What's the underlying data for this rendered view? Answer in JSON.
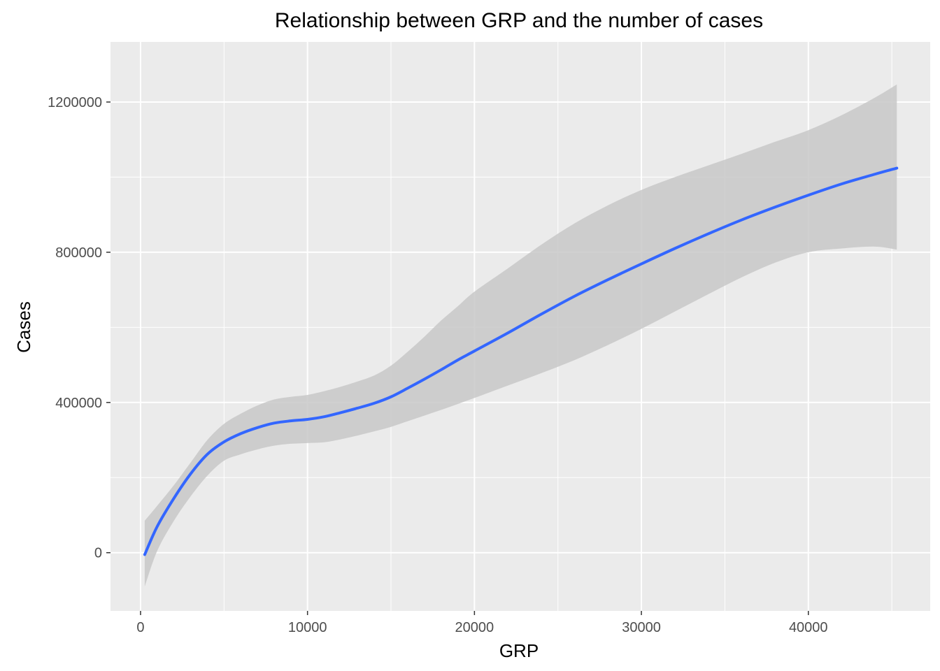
{
  "chart_data": {
    "type": "line",
    "title": "Relationship between GRP and the number of cases",
    "xlabel": "GRP",
    "ylabel": "Cases",
    "xlim": [
      -1800,
      47300
    ],
    "ylim": [
      -155000,
      1360000
    ],
    "x_ticks": [
      0,
      10000,
      20000,
      30000,
      40000
    ],
    "x_tick_labels": [
      "0",
      "10000",
      "20000",
      "30000",
      "40000"
    ],
    "y_ticks": [
      0,
      400000,
      800000,
      1200000
    ],
    "y_tick_labels": [
      "0",
      "400000",
      "800000",
      "1200000"
    ],
    "grid": true,
    "legend": "none",
    "colors": {
      "panel_background": "#ebebeb",
      "grid_line": "#ffffff",
      "smooth_line": "#3366ff",
      "confidence_band": "#c8c8c8"
    },
    "series": [
      {
        "type": "smooth_line",
        "x": [
          250,
          1000,
          2000,
          3000,
          4000,
          5000,
          6000,
          7000,
          8000,
          9000,
          10000,
          11000,
          12000,
          13000,
          14000,
          15000,
          16000,
          17000,
          18000,
          19000,
          20000,
          22000,
          24000,
          26000,
          28000,
          30000,
          32000,
          34000,
          36000,
          38000,
          40000,
          42000,
          44000,
          45300
        ],
        "y": [
          -5000,
          70000,
          145000,
          210000,
          262000,
          295000,
          317000,
          333000,
          345000,
          351000,
          355000,
          362000,
          373000,
          385000,
          398000,
          415000,
          438000,
          462000,
          487000,
          513000,
          537000,
          585000,
          635000,
          683000,
          727000,
          769000,
          810000,
          849000,
          886000,
          920000,
          952000,
          982000,
          1008000,
          1024000
        ],
        "ci_upper": [
          85000,
          125000,
          180000,
          240000,
          300000,
          343000,
          370000,
          392000,
          408000,
          415000,
          420000,
          430000,
          442000,
          456000,
          472000,
          498000,
          535000,
          575000,
          618000,
          656000,
          695000,
          757000,
          820000,
          877000,
          925000,
          966000,
          1000000,
          1031000,
          1062000,
          1094000,
          1125000,
          1165000,
          1212000,
          1247000
        ],
        "ci_lower": [
          -90000,
          5000,
          85000,
          150000,
          205000,
          245000,
          262000,
          275000,
          285000,
          290000,
          292000,
          294000,
          302000,
          312000,
          323000,
          335000,
          350000,
          365000,
          380000,
          396000,
          412000,
          445000,
          478000,
          513000,
          553000,
          596000,
          642000,
          688000,
          733000,
          772000,
          800000,
          810000,
          815000,
          807000
        ]
      }
    ]
  }
}
